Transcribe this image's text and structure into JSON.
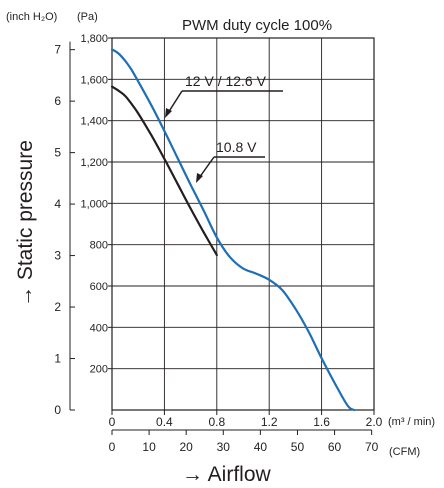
{
  "chart_data": {
    "type": "line",
    "title": "PWM duty cycle 100%",
    "xlabel": "→ Airflow",
    "ylabel": "→ Static pressure",
    "x_unit_primary": "(m³ / min)",
    "x_unit_secondary": "(CFM)",
    "y_unit_primary": "(Pa)",
    "y_unit_secondary": "(inch H₂O)",
    "xlim": [
      0,
      2.0
    ],
    "ylim": [
      0,
      1800
    ],
    "x_ticks_primary": [
      "0",
      "0.4",
      "0.8",
      "1.2",
      "1.6",
      "2.0"
    ],
    "x_ticks_secondary": [
      "0",
      "10",
      "20",
      "30",
      "40",
      "50",
      "60",
      "70"
    ],
    "y_ticks_primary": [
      "1,800",
      "1,600",
      "1,400",
      "1,200",
      "1,000",
      "800",
      "600",
      "400",
      "200"
    ],
    "y_ticks_secondary": [
      "7",
      "6",
      "5",
      "4",
      "3",
      "2",
      "1",
      "0"
    ],
    "grid": true,
    "series": [
      {
        "name": "12 V / 12.6 V",
        "color": "#1f6fb5",
        "x": [
          0,
          0.05,
          0.1,
          0.15,
          0.2,
          0.3,
          0.4,
          0.5,
          0.6,
          0.7,
          0.8,
          0.9,
          1.0,
          1.1,
          1.2,
          1.3,
          1.4,
          1.5,
          1.6,
          1.7,
          1.8,
          1.85
        ],
        "y": [
          1745,
          1725,
          1690,
          1645,
          1590,
          1475,
          1350,
          1220,
          1090,
          965,
          835,
          740,
          685,
          660,
          630,
          580,
          490,
          380,
          250,
          130,
          20,
          0
        ]
      },
      {
        "name": "10.8 V",
        "color": "#231f20",
        "x": [
          0,
          0.05,
          0.1,
          0.15,
          0.2,
          0.3,
          0.4,
          0.5,
          0.6,
          0.7,
          0.8
        ],
        "y": [
          1565,
          1545,
          1520,
          1480,
          1435,
          1330,
          1215,
          1095,
          975,
          860,
          750
        ]
      }
    ],
    "annotations": [
      "12 V / 12.6 V",
      "10.8 V"
    ]
  }
}
